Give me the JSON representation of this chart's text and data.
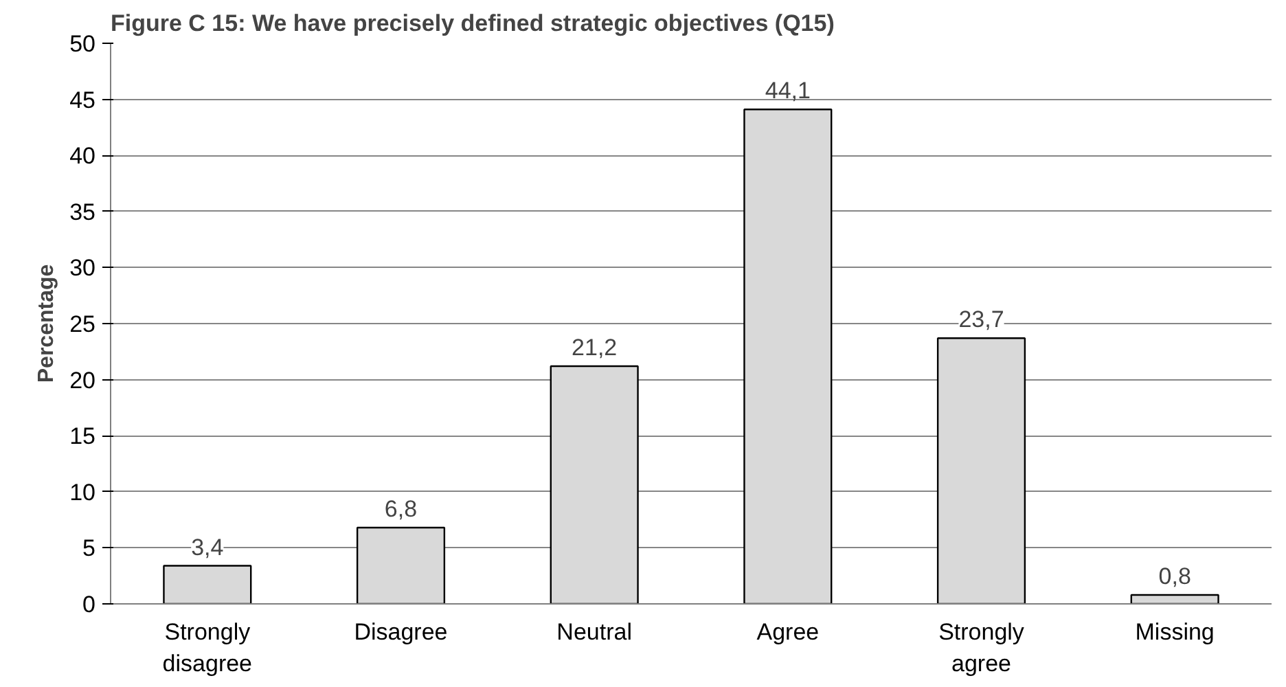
{
  "chart_data": {
    "type": "bar",
    "title": "Figure C 15: We have precisely defined strategic objectives (Q15)",
    "ylabel": "Percentage",
    "categories": [
      "Strongly\ndisagree",
      "Disagree",
      "Neutral",
      "Agree",
      "Strongly\nagree",
      "Missing"
    ],
    "values": [
      3.4,
      6.8,
      21.2,
      44.1,
      23.7,
      0.8
    ],
    "value_labels": [
      "3,4",
      "6,8",
      "21,2",
      "44,1",
      "23,7",
      "0,8"
    ],
    "color": "#d9d9d9",
    "ylim": [
      0,
      50
    ],
    "yticks": [
      0,
      5,
      10,
      15,
      20,
      25,
      30,
      35,
      40,
      45,
      50
    ],
    "grid": "y"
  }
}
